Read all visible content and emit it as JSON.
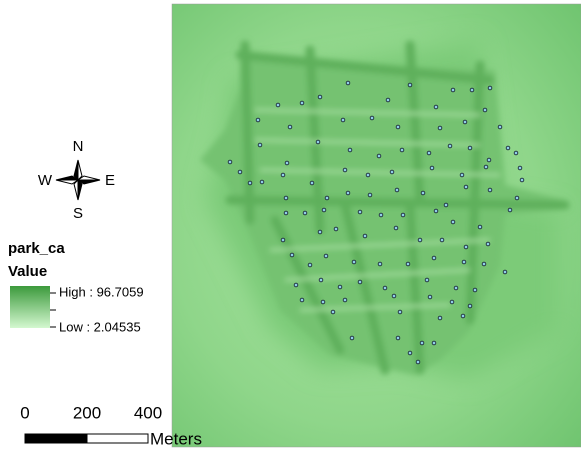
{
  "north_arrow": {
    "n": "N",
    "s": "S",
    "w": "W",
    "e": "E"
  },
  "legend": {
    "title": "park_ca",
    "field": "Value",
    "high": "High : 96.7059",
    "low": "Low : 2.04535"
  },
  "scale_bar": {
    "labels": [
      "0",
      "200",
      "400"
    ],
    "unit": "Meters"
  }
}
